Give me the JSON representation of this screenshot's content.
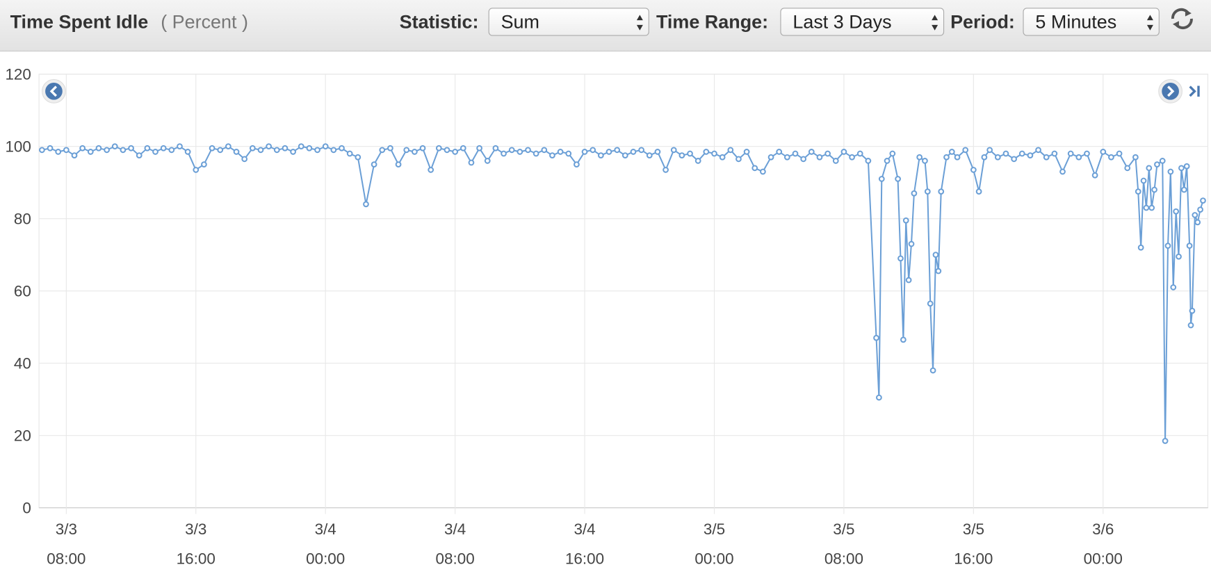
{
  "header": {
    "title": "Time Spent Idle",
    "unit": "( Percent )",
    "controls": [
      {
        "label": "Statistic:",
        "value": "Sum"
      },
      {
        "label": "Time Range:",
        "value": "Last 3 Days"
      },
      {
        "label": "Period:",
        "value": "5 Minutes"
      }
    ]
  },
  "chart_data": {
    "type": "line",
    "color": "#6b9fd6",
    "grid": true,
    "ylim": [
      0,
      120
    ],
    "yticks": [
      0,
      20,
      40,
      60,
      80,
      100,
      120
    ],
    "xlim": [
      "3/3 06:19",
      "3/6 06:28"
    ],
    "xticks": [
      "3/3 08:00",
      "3/3 16:00",
      "3/4 00:00",
      "3/4 08:00",
      "3/4 16:00",
      "3/5 00:00",
      "3/5 08:00",
      "3/5 16:00",
      "3/6 00:00"
    ],
    "x": [
      "3/3 06:30",
      "3/3 07:00",
      "3/3 07:30",
      "3/3 08:00",
      "3/3 08:30",
      "3/3 09:00",
      "3/3 09:30",
      "3/3 10:00",
      "3/3 10:30",
      "3/3 11:00",
      "3/3 11:30",
      "3/3 12:00",
      "3/3 12:30",
      "3/3 13:00",
      "3/3 13:30",
      "3/3 14:00",
      "3/3 14:30",
      "3/3 15:00",
      "3/3 15:30",
      "3/3 16:00",
      "3/3 16:30",
      "3/3 17:00",
      "3/3 17:30",
      "3/3 18:00",
      "3/3 18:30",
      "3/3 19:00",
      "3/3 19:30",
      "3/3 20:00",
      "3/3 20:30",
      "3/3 21:00",
      "3/3 21:30",
      "3/3 22:00",
      "3/3 22:30",
      "3/3 23:00",
      "3/3 23:30",
      "3/4 00:00",
      "3/4 00:30",
      "3/4 01:00",
      "3/4 01:30",
      "3/4 02:00",
      "3/4 02:30",
      "3/4 03:00",
      "3/4 03:30",
      "3/4 04:00",
      "3/4 04:30",
      "3/4 05:00",
      "3/4 05:30",
      "3/4 06:00",
      "3/4 06:30",
      "3/4 07:00",
      "3/4 07:30",
      "3/4 08:00",
      "3/4 08:30",
      "3/4 09:00",
      "3/4 09:30",
      "3/4 10:00",
      "3/4 10:30",
      "3/4 11:00",
      "3/4 11:30",
      "3/4 12:00",
      "3/4 12:30",
      "3/4 13:00",
      "3/4 13:30",
      "3/4 14:00",
      "3/4 14:30",
      "3/4 15:00",
      "3/4 15:30",
      "3/4 16:00",
      "3/4 16:30",
      "3/4 17:00",
      "3/4 17:30",
      "3/4 18:00",
      "3/4 18:30",
      "3/4 19:00",
      "3/4 19:30",
      "3/4 20:00",
      "3/4 20:30",
      "3/4 21:00",
      "3/4 21:30",
      "3/4 22:00",
      "3/4 22:30",
      "3/4 23:00",
      "3/4 23:30",
      "3/5 00:00",
      "3/5 00:30",
      "3/5 01:00",
      "3/5 01:30",
      "3/5 02:00",
      "3/5 02:30",
      "3/5 03:00",
      "3/5 03:30",
      "3/5 04:00",
      "3/5 04:30",
      "3/5 05:00",
      "3/5 05:30",
      "3/5 06:00",
      "3/5 06:30",
      "3/5 07:00",
      "3/5 07:30",
      "3/5 08:00",
      "3/5 08:30",
      "3/5 09:00",
      "3/5 09:30",
      "3/5 10:00",
      "3/5 10:10",
      "3/5 10:20",
      "3/5 10:40",
      "3/5 11:00",
      "3/5 11:20",
      "3/5 11:30",
      "3/5 11:40",
      "3/5 11:50",
      "3/5 12:00",
      "3/5 12:10",
      "3/5 12:20",
      "3/5 12:40",
      "3/5 13:00",
      "3/5 13:10",
      "3/5 13:20",
      "3/5 13:30",
      "3/5 13:40",
      "3/5 13:50",
      "3/5 14:00",
      "3/5 14:20",
      "3/5 14:40",
      "3/5 15:00",
      "3/5 15:30",
      "3/5 16:00",
      "3/5 16:20",
      "3/5 16:40",
      "3/5 17:00",
      "3/5 17:30",
      "3/5 18:00",
      "3/5 18:30",
      "3/5 19:00",
      "3/5 19:30",
      "3/5 20:00",
      "3/5 20:30",
      "3/5 21:00",
      "3/5 21:30",
      "3/5 22:00",
      "3/5 22:30",
      "3/5 23:00",
      "3/5 23:30",
      "3/6 00:00",
      "3/6 00:30",
      "3/6 01:00",
      "3/6 01:30",
      "3/6 02:00",
      "3/6 02:10",
      "3/6 02:20",
      "3/6 02:30",
      "3/6 02:40",
      "3/6 02:50",
      "3/6 03:00",
      "3/6 03:10",
      "3/6 03:20",
      "3/6 03:40",
      "3/6 03:50",
      "3/6 04:00",
      "3/6 04:10",
      "3/6 04:20",
      "3/6 04:30",
      "3/6 04:40",
      "3/6 04:50",
      "3/6 05:00",
      "3/6 05:10",
      "3/6 05:20",
      "3/6 05:25",
      "3/6 05:30",
      "3/6 05:40",
      "3/6 05:50",
      "3/6 06:00",
      "3/6 06:10"
    ],
    "values": [
      99,
      99.5,
      98.5,
      99,
      97.5,
      99.5,
      98.5,
      99.5,
      99,
      100,
      99,
      99.5,
      97.5,
      99.5,
      98.5,
      99.5,
      99,
      100,
      98.5,
      93.5,
      95,
      99.5,
      99,
      100,
      98.5,
      96.5,
      99.5,
      99,
      100,
      99,
      99.5,
      98.5,
      100,
      99.5,
      99,
      100,
      99,
      99.5,
      98,
      97,
      84,
      95,
      99,
      99.5,
      95,
      99,
      98.5,
      99.5,
      93.5,
      99.5,
      99,
      98.5,
      99.5,
      95.5,
      99.5,
      96,
      99.5,
      98,
      99,
      98.5,
      99,
      98,
      99,
      97.5,
      98.5,
      98,
      95,
      98.5,
      99,
      97.5,
      98.5,
      99,
      97.5,
      98.5,
      99,
      97.5,
      98.5,
      93.5,
      99,
      97.5,
      98,
      96,
      98.5,
      98,
      97,
      99,
      96.5,
      98.5,
      94,
      93,
      97,
      98.5,
      97,
      98,
      96.5,
      98.5,
      97,
      98,
      96,
      98.5,
      97,
      98,
      96,
      47,
      30.5,
      91,
      96,
      98,
      91,
      69,
      46.5,
      79.5,
      63,
      73,
      87,
      97,
      96,
      87.5,
      56.5,
      38,
      70,
      65.5,
      87.5,
      97,
      98.5,
      97,
      99,
      93.5,
      87.5,
      97,
      99,
      97,
      98,
      96.5,
      98,
      97.5,
      99,
      97,
      98,
      93,
      98,
      97,
      98,
      92,
      98.5,
      97,
      98,
      94,
      97,
      87.5,
      72,
      90.5,
      83,
      94,
      83,
      88,
      95,
      96,
      18.5,
      72.5,
      93,
      61,
      82,
      69.5,
      94,
      88,
      94.5,
      72.5,
      50.5,
      54.5,
      81,
      79,
      82.5,
      85
    ]
  }
}
